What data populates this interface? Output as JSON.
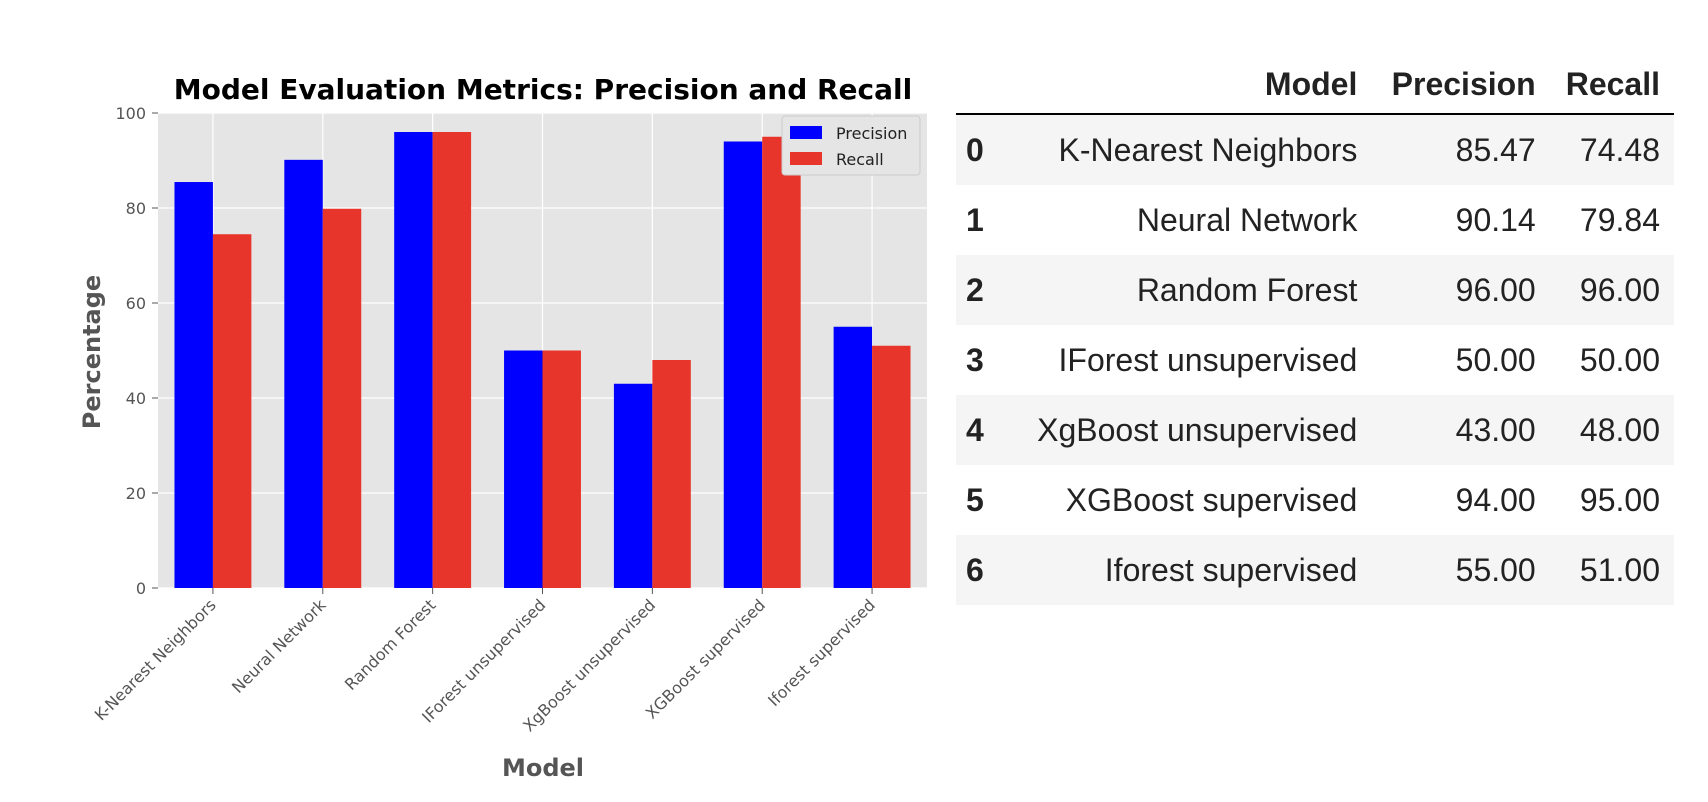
{
  "chart_data": {
    "type": "bar",
    "title": "Model Evaluation Metrics: Precision and Recall",
    "xlabel": "Model",
    "ylabel": "Percentage",
    "ylim": [
      0,
      100
    ],
    "yticks": [
      0,
      20,
      40,
      60,
      80,
      100
    ],
    "grid": true,
    "legend_position": "top-right",
    "categories": [
      "K-Nearest Neighbors",
      "Neural Network",
      "Random Forest",
      "IForest unsupervised",
      "XgBoost unsupervised",
      "XGBoost supervised",
      "Iforest supervised"
    ],
    "series": [
      {
        "name": "Precision",
        "color": "#0000ff",
        "values": [
          85.47,
          90.14,
          96.0,
          50.0,
          43.0,
          94.0,
          55.0
        ]
      },
      {
        "name": "Recall",
        "color": "#e8352b",
        "values": [
          74.48,
          79.84,
          96.0,
          50.0,
          48.0,
          95.0,
          51.0
        ]
      }
    ],
    "colors": {
      "background": "#e5e5e5",
      "grid": "#ffffff"
    }
  },
  "table": {
    "columns": [
      "",
      "Model",
      "Precision",
      "Recall"
    ],
    "rows": [
      {
        "index": "0",
        "model": "K-Nearest Neighbors",
        "precision": "85.47",
        "recall": "74.48"
      },
      {
        "index": "1",
        "model": "Neural Network",
        "precision": "90.14",
        "recall": "79.84"
      },
      {
        "index": "2",
        "model": "Random Forest",
        "precision": "96.00",
        "recall": "96.00"
      },
      {
        "index": "3",
        "model": "IForest unsupervised",
        "precision": "50.00",
        "recall": "50.00"
      },
      {
        "index": "4",
        "model": "XgBoost unsupervised",
        "precision": "43.00",
        "recall": "48.00"
      },
      {
        "index": "5",
        "model": "XGBoost supervised",
        "precision": "94.00",
        "recall": "95.00"
      },
      {
        "index": "6",
        "model": "Iforest supervised",
        "precision": "55.00",
        "recall": "51.00"
      }
    ]
  }
}
